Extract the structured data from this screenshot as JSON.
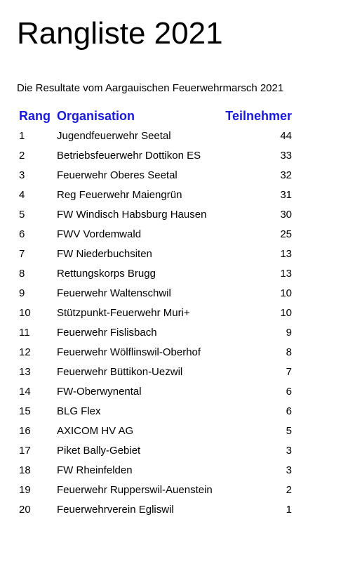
{
  "title": "Rangliste 2021",
  "intro": "Die Resultate vom Aargauischen Feuerwehrmarsch 2021",
  "table": {
    "headers": {
      "rank": "Rang",
      "organisation": "Organisation",
      "participants": "Teilnehmer"
    },
    "rows": [
      {
        "rank": "1",
        "organisation": "Jugendfeuerwehr Seetal",
        "participants": "44"
      },
      {
        "rank": "2",
        "organisation": "Betriebsfeuerwehr Dottikon ES",
        "participants": "33"
      },
      {
        "rank": "3",
        "organisation": "Feuerwehr Oberes Seetal",
        "participants": "32"
      },
      {
        "rank": "4",
        "organisation": "Reg Feuerwehr Maiengrün",
        "participants": "31"
      },
      {
        "rank": "5",
        "organisation": "FW Windisch Habsburg Hausen",
        "participants": "30"
      },
      {
        "rank": "6",
        "organisation": "FWV Vordemwald",
        "participants": "25"
      },
      {
        "rank": "7",
        "organisation": "FW Niederbuchsiten",
        "participants": "13"
      },
      {
        "rank": "8",
        "organisation": "Rettungskorps Brugg",
        "participants": "13"
      },
      {
        "rank": "9",
        "organisation": "Feuerwehr Waltenschwil",
        "participants": "10"
      },
      {
        "rank": "10",
        "organisation": "Stützpunkt-Feuerwehr Muri+",
        "participants": "10"
      },
      {
        "rank": "11",
        "organisation": "Feuerwehr Fislisbach",
        "participants": "9"
      },
      {
        "rank": "12",
        "organisation": "Feuerwehr Wölflinswil-Oberhof",
        "participants": "8"
      },
      {
        "rank": "13",
        "organisation": "Feuerwehr Büttikon-Uezwil",
        "participants": "7"
      },
      {
        "rank": "14",
        "organisation": "FW-Oberwynental",
        "participants": "6"
      },
      {
        "rank": "15",
        "organisation": "BLG Flex",
        "participants": "6"
      },
      {
        "rank": "16",
        "organisation": "AXICOM HV AG",
        "participants": "5"
      },
      {
        "rank": "17",
        "organisation": "Piket Bally-Gebiet",
        "participants": "3"
      },
      {
        "rank": "18",
        "organisation": "FW Rheinfelden",
        "participants": "3"
      },
      {
        "rank": "19",
        "organisation": "Feuerwehr Rupperswil-Auenstein",
        "participants": "2"
      },
      {
        "rank": "20",
        "organisation": "Feuerwehrverein Egliswil",
        "participants": "1"
      }
    ]
  },
  "colors": {
    "header_text": "#1a1adb",
    "body_text": "#000000",
    "background": "#ffffff"
  }
}
